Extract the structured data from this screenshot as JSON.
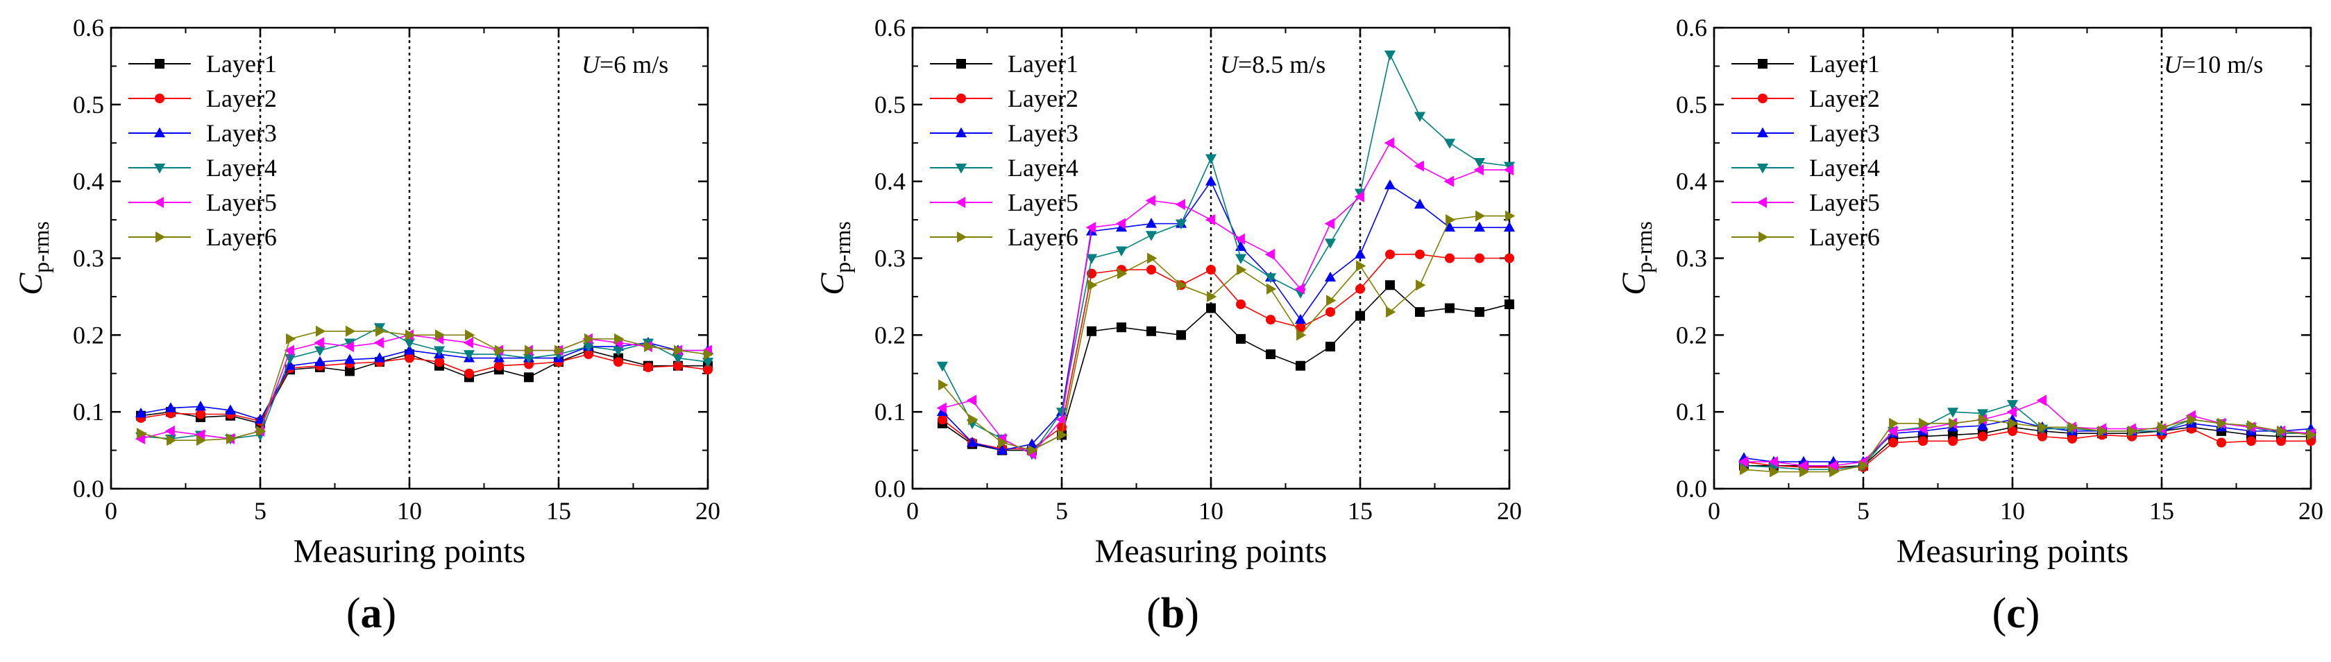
{
  "figure": {
    "panel_labels": [
      "(a)",
      "(b)",
      "(c)"
    ],
    "speed_labels": [
      {
        "var": "U",
        "rest": "=6 m/s"
      },
      {
        "var": "U",
        "rest": "=8.5 m/s"
      },
      {
        "var": "U",
        "rest": "=10 m/s"
      }
    ]
  },
  "series_style": [
    {
      "name": "Layer1",
      "color": "#000000",
      "marker": "square"
    },
    {
      "name": "Layer2",
      "color": "#ff0000",
      "marker": "circle"
    },
    {
      "name": "Layer3",
      "color": "#0000ff",
      "marker": "triangle-up"
    },
    {
      "name": "Layer4",
      "color": "#008080",
      "marker": "triangle-down"
    },
    {
      "name": "Layer5",
      "color": "#ff00ff",
      "marker": "triangle-left"
    },
    {
      "name": "Layer6",
      "color": "#808000",
      "marker": "triangle-right"
    }
  ],
  "chart_data": [
    {
      "type": "line",
      "panel": "(a)",
      "xlabel": "Measuring points",
      "ylabel_main": "C",
      "ylabel_sub": "p-rms",
      "xlim": [
        0,
        20
      ],
      "ylim": [
        0,
        0.6
      ],
      "xticks": [
        "0",
        "5",
        "10",
        "15",
        "20"
      ],
      "yticks": [
        "0.0",
        "0.1",
        "0.2",
        "0.3",
        "0.4",
        "0.5",
        "0.6"
      ],
      "vlines": [
        5,
        10,
        15
      ],
      "legend": "top-left",
      "x": [
        1,
        2,
        3,
        4,
        5,
        6,
        7,
        8,
        9,
        10,
        11,
        12,
        13,
        14,
        15,
        16,
        17,
        18,
        19,
        20
      ],
      "series": [
        {
          "name": "Layer1",
          "values": [
            0.095,
            0.1,
            0.093,
            0.095,
            0.085,
            0.155,
            0.158,
            0.153,
            0.165,
            0.175,
            0.16,
            0.145,
            0.155,
            0.145,
            0.165,
            0.18,
            0.17,
            0.16,
            0.16,
            0.16
          ]
        },
        {
          "name": "Layer2",
          "values": [
            0.092,
            0.098,
            0.097,
            0.097,
            0.088,
            0.157,
            0.16,
            0.163,
            0.165,
            0.17,
            0.165,
            0.15,
            0.16,
            0.162,
            0.165,
            0.175,
            0.165,
            0.158,
            0.16,
            0.155
          ]
        },
        {
          "name": "Layer3",
          "values": [
            0.098,
            0.105,
            0.107,
            0.102,
            0.09,
            0.16,
            0.165,
            0.168,
            0.17,
            0.18,
            0.175,
            0.17,
            0.17,
            0.17,
            0.17,
            0.185,
            0.185,
            0.19,
            0.18,
            0.18
          ]
        },
        {
          "name": "Layer4",
          "values": [
            0.068,
            0.065,
            0.07,
            0.065,
            0.07,
            0.17,
            0.18,
            0.19,
            0.21,
            0.19,
            0.18,
            0.175,
            0.175,
            0.17,
            0.175,
            0.185,
            0.18,
            0.19,
            0.17,
            0.165
          ]
        },
        {
          "name": "Layer5",
          "values": [
            0.065,
            0.075,
            0.07,
            0.065,
            0.075,
            0.18,
            0.19,
            0.185,
            0.19,
            0.2,
            0.195,
            0.19,
            0.18,
            0.18,
            0.18,
            0.195,
            0.19,
            0.185,
            0.18,
            0.18
          ]
        },
        {
          "name": "Layer6",
          "values": [
            0.072,
            0.063,
            0.063,
            0.065,
            0.075,
            0.195,
            0.205,
            0.205,
            0.205,
            0.2,
            0.2,
            0.2,
            0.18,
            0.18,
            0.18,
            0.195,
            0.195,
            0.185,
            0.18,
            0.175
          ]
        }
      ]
    },
    {
      "type": "line",
      "panel": "(b)",
      "xlabel": "Measuring points",
      "ylabel_main": "C",
      "ylabel_sub": "p-rms",
      "xlim": [
        0,
        20
      ],
      "ylim": [
        0,
        0.6
      ],
      "xticks": [
        "0",
        "5",
        "10",
        "15",
        "20"
      ],
      "yticks": [
        "0.0",
        "0.1",
        "0.2",
        "0.3",
        "0.4",
        "0.5",
        "0.6"
      ],
      "vlines": [
        5,
        10,
        15
      ],
      "legend": "top-left",
      "x": [
        1,
        2,
        3,
        4,
        5,
        6,
        7,
        8,
        9,
        10,
        11,
        12,
        13,
        14,
        15,
        16,
        17,
        18,
        19,
        20
      ],
      "series": [
        {
          "name": "Layer1",
          "values": [
            0.085,
            0.058,
            0.05,
            0.05,
            0.07,
            0.205,
            0.21,
            0.205,
            0.2,
            0.235,
            0.195,
            0.175,
            0.16,
            0.185,
            0.225,
            0.265,
            0.23,
            0.235,
            0.23,
            0.24
          ]
        },
        {
          "name": "Layer2",
          "values": [
            0.09,
            0.06,
            0.052,
            0.052,
            0.08,
            0.28,
            0.285,
            0.285,
            0.265,
            0.285,
            0.24,
            0.22,
            0.21,
            0.23,
            0.26,
            0.305,
            0.305,
            0.3,
            0.3,
            0.3
          ]
        },
        {
          "name": "Layer3",
          "values": [
            0.1,
            0.06,
            0.05,
            0.058,
            0.1,
            0.335,
            0.34,
            0.345,
            0.345,
            0.4,
            0.315,
            0.275,
            0.22,
            0.275,
            0.305,
            0.395,
            0.37,
            0.34,
            0.34,
            0.34
          ]
        },
        {
          "name": "Layer4",
          "values": [
            0.16,
            0.085,
            0.065,
            0.045,
            0.1,
            0.3,
            0.31,
            0.33,
            0.345,
            0.43,
            0.3,
            0.275,
            0.255,
            0.32,
            0.385,
            0.565,
            0.485,
            0.45,
            0.425,
            0.42
          ]
        },
        {
          "name": "Layer5",
          "values": [
            0.105,
            0.115,
            0.065,
            0.045,
            0.09,
            0.34,
            0.345,
            0.375,
            0.37,
            0.35,
            0.325,
            0.305,
            0.26,
            0.345,
            0.38,
            0.45,
            0.42,
            0.4,
            0.415,
            0.415
          ]
        },
        {
          "name": "Layer6",
          "values": [
            0.135,
            0.09,
            0.06,
            0.05,
            0.07,
            0.265,
            0.28,
            0.3,
            0.265,
            0.25,
            0.285,
            0.26,
            0.2,
            0.245,
            0.29,
            0.23,
            0.265,
            0.35,
            0.355,
            0.355
          ]
        }
      ]
    },
    {
      "type": "line",
      "panel": "(c)",
      "xlabel": "Measuring points",
      "ylabel_main": "C",
      "ylabel_sub": "p-rms",
      "xlim": [
        0,
        20
      ],
      "ylim": [
        0,
        0.6
      ],
      "xticks": [
        "0",
        "5",
        "10",
        "15",
        "20"
      ],
      "yticks": [
        "0.0",
        "0.1",
        "0.2",
        "0.3",
        "0.4",
        "0.5",
        "0.6"
      ],
      "vlines": [
        5,
        10,
        15
      ],
      "legend": "top-left",
      "x": [
        1,
        2,
        3,
        4,
        5,
        6,
        7,
        8,
        9,
        10,
        11,
        12,
        13,
        14,
        15,
        16,
        17,
        18,
        19,
        20
      ],
      "series": [
        {
          "name": "Layer1",
          "values": [
            0.03,
            0.03,
            0.03,
            0.028,
            0.03,
            0.065,
            0.068,
            0.07,
            0.072,
            0.08,
            0.075,
            0.072,
            0.072,
            0.072,
            0.075,
            0.08,
            0.075,
            0.07,
            0.068,
            0.068
          ]
        },
        {
          "name": "Layer2",
          "values": [
            0.035,
            0.03,
            0.028,
            0.028,
            0.028,
            0.06,
            0.062,
            0.062,
            0.068,
            0.075,
            0.068,
            0.065,
            0.07,
            0.068,
            0.07,
            0.078,
            0.06,
            0.062,
            0.062,
            0.062
          ]
        },
        {
          "name": "Layer3",
          "values": [
            0.04,
            0.035,
            0.035,
            0.035,
            0.035,
            0.072,
            0.075,
            0.08,
            0.082,
            0.09,
            0.08,
            0.075,
            0.075,
            0.075,
            0.075,
            0.085,
            0.08,
            0.075,
            0.075,
            0.078
          ]
        },
        {
          "name": "Layer4",
          "values": [
            0.03,
            0.028,
            0.025,
            0.025,
            0.03,
            0.075,
            0.08,
            0.1,
            0.098,
            0.11,
            0.078,
            0.078,
            0.075,
            0.075,
            0.075,
            0.09,
            0.085,
            0.08,
            0.072,
            0.072
          ]
        },
        {
          "name": "Layer5",
          "values": [
            0.035,
            0.035,
            0.03,
            0.03,
            0.035,
            0.075,
            0.078,
            0.085,
            0.09,
            0.1,
            0.115,
            0.08,
            0.078,
            0.078,
            0.078,
            0.095,
            0.085,
            0.08,
            0.075,
            0.072
          ]
        },
        {
          "name": "Layer6",
          "values": [
            0.025,
            0.022,
            0.022,
            0.022,
            0.03,
            0.085,
            0.085,
            0.085,
            0.09,
            0.085,
            0.08,
            0.08,
            0.075,
            0.075,
            0.08,
            0.09,
            0.085,
            0.082,
            0.075,
            0.07
          ]
        }
      ]
    }
  ]
}
